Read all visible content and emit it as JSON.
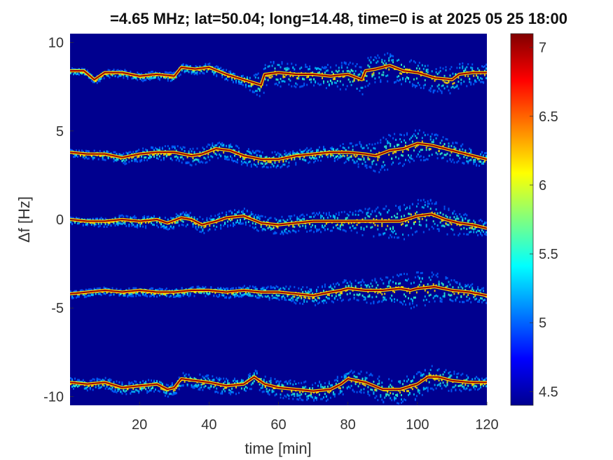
{
  "chart_data": {
    "type": "heatmap",
    "title": "=4.65 MHz;  lat=50.04; long=14.48, time=0 is at 2025 05 25 18:00",
    "xlabel": "time [min]",
    "ylabel": "Δf [Hz]",
    "xlim": [
      0,
      120
    ],
    "ylim": [
      -10.5,
      10.5
    ],
    "x_ticks": [
      20,
      40,
      60,
      80,
      100,
      120
    ],
    "y_ticks": [
      10,
      5,
      0,
      -5,
      -10
    ],
    "colorbar": {
      "ticks": [
        7,
        6.5,
        6,
        5.5,
        5,
        4.5
      ],
      "range": [
        4.4,
        7.1
      ],
      "colormap": "jet"
    },
    "traces": [
      {
        "name": "",
        "points": [
          [
            0,
            8.4
          ],
          [
            4,
            8.4
          ],
          [
            7,
            7.9
          ],
          [
            10,
            8.3
          ],
          [
            15,
            8.3
          ],
          [
            20,
            8.1
          ],
          [
            25,
            8.2
          ],
          [
            30,
            8.1
          ],
          [
            32,
            8.6
          ],
          [
            36,
            8.5
          ],
          [
            40,
            8.6
          ],
          [
            45,
            8.2
          ],
          [
            50,
            7.9
          ],
          [
            55,
            7.6
          ],
          [
            56,
            8.2
          ],
          [
            60,
            8.3
          ],
          [
            65,
            8.2
          ],
          [
            70,
            8.2
          ],
          [
            75,
            8.1
          ],
          [
            80,
            8.2
          ],
          [
            84,
            7.9
          ],
          [
            85,
            8.4
          ],
          [
            88,
            8.5
          ],
          [
            92,
            8.7
          ],
          [
            96,
            8.4
          ],
          [
            100,
            8.3
          ],
          [
            105,
            8.0
          ],
          [
            110,
            7.9
          ],
          [
            112,
            8.2
          ],
          [
            116,
            8.3
          ],
          [
            120,
            8.3
          ]
        ],
        "spread": [
          [
            0,
            0.2
          ],
          [
            50,
            0.3
          ],
          [
            55,
            0.8
          ],
          [
            70,
            0.6
          ],
          [
            85,
            0.9
          ],
          [
            95,
            0.8
          ],
          [
            110,
            0.8
          ],
          [
            120,
            0.5
          ]
        ]
      },
      {
        "name": "",
        "points": [
          [
            0,
            3.8
          ],
          [
            5,
            3.7
          ],
          [
            10,
            3.7
          ],
          [
            15,
            3.5
          ],
          [
            20,
            3.7
          ],
          [
            25,
            3.8
          ],
          [
            30,
            3.8
          ],
          [
            35,
            3.6
          ],
          [
            38,
            3.7
          ],
          [
            42,
            4.0
          ],
          [
            46,
            3.9
          ],
          [
            50,
            3.6
          ],
          [
            55,
            3.4
          ],
          [
            60,
            3.4
          ],
          [
            65,
            3.6
          ],
          [
            70,
            3.7
          ],
          [
            75,
            3.8
          ],
          [
            80,
            3.8
          ],
          [
            85,
            3.7
          ],
          [
            88,
            3.6
          ],
          [
            92,
            3.9
          ],
          [
            96,
            4.0
          ],
          [
            100,
            4.3
          ],
          [
            104,
            4.2
          ],
          [
            108,
            4.0
          ],
          [
            112,
            3.8
          ],
          [
            116,
            3.6
          ],
          [
            120,
            3.4
          ]
        ],
        "spread": [
          [
            0,
            0.2
          ],
          [
            35,
            0.5
          ],
          [
            55,
            0.5
          ],
          [
            75,
            0.4
          ],
          [
            90,
            1.0
          ],
          [
            100,
            0.9
          ],
          [
            115,
            0.5
          ],
          [
            120,
            0.4
          ]
        ]
      },
      {
        "name": "",
        "points": [
          [
            0,
            0.0
          ],
          [
            5,
            -0.1
          ],
          [
            10,
            -0.1
          ],
          [
            15,
            0.0
          ],
          [
            20,
            -0.1
          ],
          [
            25,
            0.0
          ],
          [
            28,
            -0.2
          ],
          [
            32,
            0.1
          ],
          [
            35,
            0.0
          ],
          [
            38,
            -0.3
          ],
          [
            42,
            -0.1
          ],
          [
            45,
            0.1
          ],
          [
            50,
            0.2
          ],
          [
            55,
            -0.2
          ],
          [
            60,
            -0.3
          ],
          [
            65,
            -0.2
          ],
          [
            70,
            -0.1
          ],
          [
            75,
            -0.1
          ],
          [
            80,
            -0.1
          ],
          [
            85,
            -0.1
          ],
          [
            90,
            -0.1
          ],
          [
            95,
            -0.1
          ],
          [
            100,
            0.2
          ],
          [
            104,
            0.3
          ],
          [
            108,
            0.0
          ],
          [
            112,
            -0.2
          ],
          [
            116,
            -0.3
          ],
          [
            120,
            -0.5
          ]
        ],
        "spread": [
          [
            0,
            0.2
          ],
          [
            30,
            0.4
          ],
          [
            60,
            0.5
          ],
          [
            80,
            0.6
          ],
          [
            95,
            1.1
          ],
          [
            105,
            0.9
          ],
          [
            120,
            0.4
          ]
        ]
      },
      {
        "name": "",
        "points": [
          [
            0,
            -4.2
          ],
          [
            5,
            -4.1
          ],
          [
            10,
            -4.0
          ],
          [
            15,
            -4.1
          ],
          [
            20,
            -4.0
          ],
          [
            25,
            -4.1
          ],
          [
            30,
            -4.1
          ],
          [
            35,
            -4.0
          ],
          [
            40,
            -4.0
          ],
          [
            45,
            -4.1
          ],
          [
            50,
            -4.0
          ],
          [
            55,
            -4.1
          ],
          [
            60,
            -4.1
          ],
          [
            65,
            -4.2
          ],
          [
            70,
            -4.3
          ],
          [
            75,
            -4.1
          ],
          [
            78,
            -4.0
          ],
          [
            80,
            -3.9
          ],
          [
            85,
            -4.0
          ],
          [
            90,
            -4.0
          ],
          [
            95,
            -3.9
          ],
          [
            98,
            -4.0
          ],
          [
            100,
            -3.9
          ],
          [
            105,
            -3.8
          ],
          [
            110,
            -4.0
          ],
          [
            115,
            -4.1
          ],
          [
            120,
            -4.3
          ]
        ],
        "spread": [
          [
            0,
            0.2
          ],
          [
            50,
            0.3
          ],
          [
            65,
            0.5
          ],
          [
            80,
            0.6
          ],
          [
            100,
            1.0
          ],
          [
            110,
            0.7
          ],
          [
            120,
            0.4
          ]
        ]
      },
      {
        "name": "",
        "points": [
          [
            0,
            -9.2
          ],
          [
            5,
            -9.3
          ],
          [
            10,
            -9.2
          ],
          [
            15,
            -9.5
          ],
          [
            20,
            -9.4
          ],
          [
            25,
            -9.3
          ],
          [
            28,
            -9.6
          ],
          [
            30,
            -9.5
          ],
          [
            32,
            -9.0
          ],
          [
            36,
            -9.1
          ],
          [
            40,
            -9.2
          ],
          [
            45,
            -9.4
          ],
          [
            50,
            -9.3
          ],
          [
            53,
            -8.9
          ],
          [
            56,
            -9.3
          ],
          [
            60,
            -9.5
          ],
          [
            65,
            -9.6
          ],
          [
            70,
            -9.7
          ],
          [
            75,
            -9.6
          ],
          [
            78,
            -9.3
          ],
          [
            80,
            -9.0
          ],
          [
            85,
            -9.2
          ],
          [
            90,
            -9.6
          ],
          [
            95,
            -9.6
          ],
          [
            100,
            -9.3
          ],
          [
            103,
            -8.9
          ],
          [
            106,
            -8.9
          ],
          [
            110,
            -9.1
          ],
          [
            115,
            -9.2
          ],
          [
            120,
            -9.2
          ]
        ],
        "spread": [
          [
            0,
            0.3
          ],
          [
            30,
            0.4
          ],
          [
            55,
            0.5
          ],
          [
            80,
            0.6
          ],
          [
            100,
            0.8
          ],
          [
            110,
            0.6
          ],
          [
            120,
            0.3
          ]
        ]
      }
    ]
  }
}
